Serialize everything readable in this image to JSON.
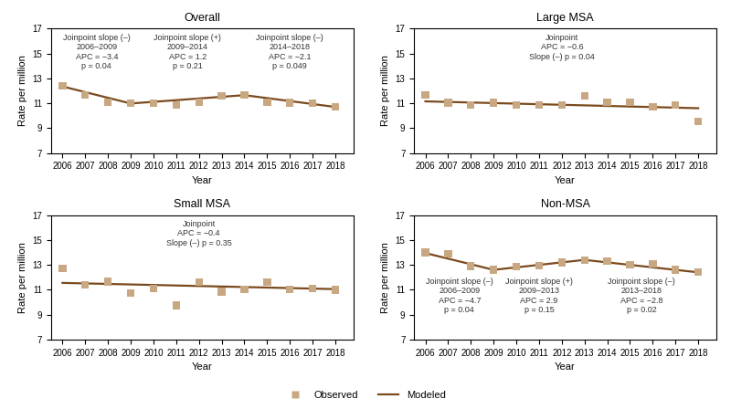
{
  "chart_data": [
    {
      "type": "line",
      "title": "Overall",
      "x_label": "Year",
      "y_label": "Rate per million",
      "x": [
        2006,
        2007,
        2008,
        2009,
        2010,
        2011,
        2012,
        2013,
        2014,
        2015,
        2016,
        2017,
        2018
      ],
      "xlim": [
        2005.5,
        2018.8
      ],
      "xticks": [
        2006,
        2007,
        2008,
        2009,
        2010,
        2011,
        2012,
        2013,
        2014,
        2015,
        2016,
        2017,
        2018
      ],
      "ylim": [
        7,
        17
      ],
      "yticks": [
        7,
        9,
        11,
        13,
        15,
        17
      ],
      "series": [
        {
          "name": "Observed",
          "type": "scatter",
          "marker": "square",
          "color": "#c8a882",
          "values": [
            12.4,
            11.65,
            11.1,
            11.0,
            11.0,
            10.85,
            11.1,
            11.6,
            11.65,
            11.1,
            11.05,
            11.0,
            10.7
          ]
        },
        {
          "name": "Modeled",
          "type": "line",
          "color": "#7b4a1e",
          "x": [
            2006,
            2009,
            2014,
            2018
          ],
          "values": [
            12.35,
            10.98,
            11.65,
            10.7
          ]
        }
      ],
      "annotations": [
        "Joinpoint slope (–)\n2006–2009\nAPC = −3.4\np = 0.04",
        "Joinpoint slope (+)\n2009–2014\nAPC = 1.2\np = 0.21",
        "Joinpoint slope (–)\n2014–2018\nAPC = −2.1\np = 0.049"
      ],
      "legend": "lower center"
    },
    {
      "type": "line",
      "title": "Large MSA",
      "x_label": "Year",
      "y_label": "Rate per million",
      "x": [
        2006,
        2007,
        2008,
        2009,
        2010,
        2011,
        2012,
        2013,
        2014,
        2015,
        2016,
        2017,
        2018
      ],
      "xlim": [
        2005.5,
        2018.8
      ],
      "xticks": [
        2006,
        2007,
        2008,
        2009,
        2010,
        2011,
        2012,
        2013,
        2014,
        2015,
        2016,
        2017,
        2018
      ],
      "ylim": [
        7,
        17
      ],
      "yticks": [
        7,
        9,
        11,
        13,
        15,
        17
      ],
      "series": [
        {
          "name": "Observed",
          "type": "scatter",
          "marker": "square",
          "color": "#c8a882",
          "values": [
            11.65,
            11.05,
            10.85,
            11.05,
            10.85,
            10.85,
            10.85,
            11.6,
            11.1,
            11.1,
            10.7,
            10.85,
            9.55
          ]
        },
        {
          "name": "Modeled",
          "type": "line",
          "color": "#7b4a1e",
          "x": [
            2006,
            2018
          ],
          "values": [
            11.15,
            10.6
          ]
        }
      ],
      "annotations": [
        "Joinpoint\nAPC = −0.6\nSlope (–) p = 0.04"
      ]
    },
    {
      "type": "line",
      "title": "Small MSA",
      "x_label": "Year",
      "y_label": "Rate per million",
      "x": [
        2006,
        2007,
        2008,
        2009,
        2010,
        2011,
        2012,
        2013,
        2014,
        2015,
        2016,
        2017,
        2018
      ],
      "xlim": [
        2005.5,
        2018.8
      ],
      "xticks": [
        2006,
        2007,
        2008,
        2009,
        2010,
        2011,
        2012,
        2013,
        2014,
        2015,
        2016,
        2017,
        2018
      ],
      "ylim": [
        7,
        17
      ],
      "yticks": [
        7,
        9,
        11,
        13,
        15,
        17
      ],
      "series": [
        {
          "name": "Observed",
          "type": "scatter",
          "marker": "square",
          "color": "#c8a882",
          "values": [
            12.7,
            11.4,
            11.65,
            10.75,
            11.1,
            9.75,
            11.6,
            10.85,
            11.05,
            11.6,
            11.05,
            11.1,
            11.0
          ]
        },
        {
          "name": "Modeled",
          "type": "line",
          "color": "#7b4a1e",
          "x": [
            2006,
            2018
          ],
          "values": [
            11.55,
            11.05
          ]
        }
      ],
      "annotations": [
        "Joinpoint\nAPC = −0.4\nSlope (–) p = 0.35"
      ]
    },
    {
      "type": "line",
      "title": "Non-MSA",
      "x_label": "Year",
      "y_label": "Rate per million",
      "x": [
        2006,
        2007,
        2008,
        2009,
        2010,
        2011,
        2012,
        2013,
        2014,
        2015,
        2016,
        2017,
        2018
      ],
      "xlim": [
        2005.5,
        2018.8
      ],
      "xticks": [
        2006,
        2007,
        2008,
        2009,
        2010,
        2011,
        2012,
        2013,
        2014,
        2015,
        2016,
        2017,
        2018
      ],
      "ylim": [
        7,
        17
      ],
      "yticks": [
        7,
        9,
        11,
        13,
        15,
        17
      ],
      "series": [
        {
          "name": "Observed",
          "type": "scatter",
          "marker": "square",
          "color": "#c8a882",
          "values": [
            14.0,
            13.9,
            12.9,
            12.6,
            12.85,
            12.95,
            13.2,
            13.4,
            13.3,
            13.0,
            13.1,
            12.6,
            12.4
          ]
        },
        {
          "name": "Modeled",
          "type": "line",
          "color": "#7b4a1e",
          "x": [
            2006,
            2009,
            2013,
            2018
          ],
          "values": [
            13.95,
            12.6,
            13.4,
            12.4
          ]
        }
      ],
      "annotations": [
        "Joinpoint slope (–)\n2006–2009\nAPC = −4.7\np = 0.04",
        "Joinpoint slope (+)\n2009–2013\nAPC = 2.9\np = 0.15",
        "Joinpoint slope (–)\n2013–2018\nAPC = −2.8\np = 0.02"
      ]
    }
  ]
}
